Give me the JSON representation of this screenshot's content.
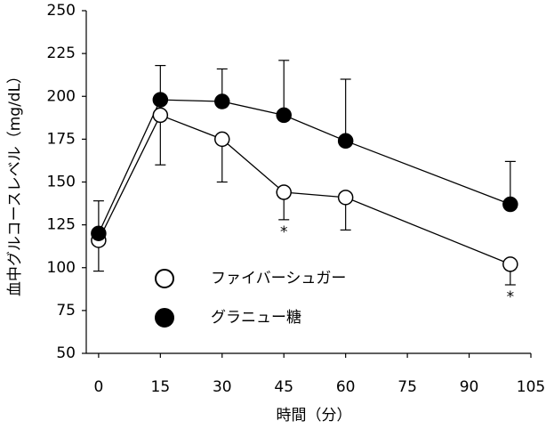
{
  "chart_data": {
    "type": "line",
    "x_label": "時間（分）",
    "y_label": "血中グルコースレベル（mg/dL）",
    "x": [
      0,
      15,
      30,
      45,
      60,
      100
    ],
    "xlim": [
      -3,
      105
    ],
    "xticks": [
      0,
      15,
      30,
      45,
      60,
      75,
      90,
      105
    ],
    "ylim": [
      50,
      250
    ],
    "yticks": [
      50,
      75,
      100,
      125,
      150,
      175,
      200,
      225,
      250
    ],
    "series": [
      {
        "name": "ファイバーシュガー",
        "color": "#000000",
        "marker_fill": "#ffffff",
        "values": [
          116,
          189,
          175,
          144,
          141,
          102
        ],
        "errors": [
          18,
          29,
          25,
          16,
          19,
          12
        ],
        "error_direction": "down"
      },
      {
        "name": "グラニュー糖",
        "color": "#000000",
        "marker_fill": "#000000",
        "values": [
          120,
          198,
          197,
          189,
          174,
          137
        ],
        "errors": [
          19,
          20,
          19,
          32,
          36,
          25
        ],
        "error_direction": "up"
      }
    ],
    "annotations": [
      {
        "text": "*",
        "x": 45
      },
      {
        "text": "*",
        "x": 100
      }
    ]
  }
}
